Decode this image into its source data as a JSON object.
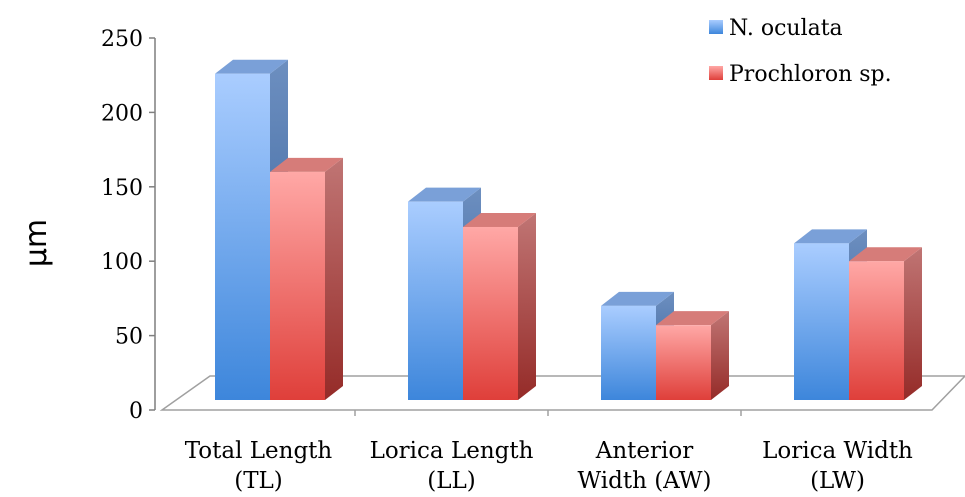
{
  "chart_data": {
    "type": "bar",
    "style": "3d-clustered-column",
    "title": "",
    "xlabel": "",
    "ylabel": "µm",
    "ylim": [
      0,
      250
    ],
    "yticks": [
      0,
      50,
      100,
      150,
      200,
      250
    ],
    "categories": [
      [
        "Total Length",
        "(TL)"
      ],
      [
        "Lorica Length",
        "(LL)"
      ],
      [
        "Anterior",
        "Width (AW)"
      ],
      [
        "Lorica Width",
        "(LW)"
      ]
    ],
    "series": [
      {
        "name": "N. oculata",
        "values": [
          226,
          140,
          70,
          112
        ],
        "color": "#5b9bd5"
      },
      {
        "name": "Prochloron sp.",
        "values": [
          160,
          123,
          57,
          100
        ],
        "color": "#e0504a"
      }
    ],
    "legend_position": "top-right",
    "grid": false
  }
}
